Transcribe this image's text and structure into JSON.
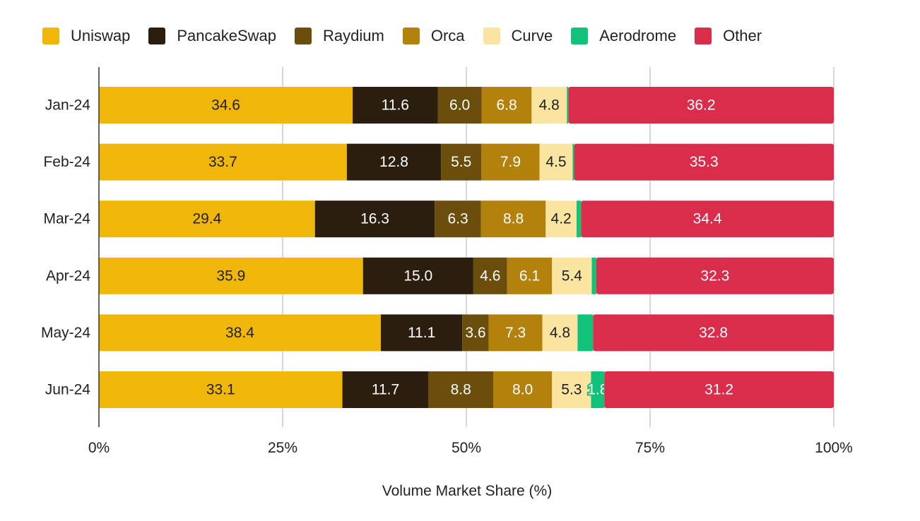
{
  "chart_data": {
    "type": "bar",
    "orientation": "horizontal",
    "stacked": true,
    "categories": [
      "Jan-24",
      "Feb-24",
      "Mar-24",
      "Apr-24",
      "May-24",
      "Jun-24"
    ],
    "series": [
      {
        "name": "Uniswap",
        "color": "#F0B70A",
        "values": [
          34.6,
          33.7,
          29.4,
          35.9,
          38.4,
          33.1
        ]
      },
      {
        "name": "PancakeSwap",
        "color": "#2B1E0E",
        "values": [
          11.6,
          12.8,
          16.3,
          15.0,
          11.1,
          11.7
        ]
      },
      {
        "name": "Raydium",
        "color": "#6B4E0B",
        "values": [
          6.0,
          5.5,
          6.3,
          4.6,
          3.6,
          8.8
        ]
      },
      {
        "name": "Orca",
        "color": "#B4820C",
        "values": [
          6.8,
          7.9,
          8.8,
          6.1,
          7.3,
          8.0
        ]
      },
      {
        "name": "Curve",
        "color": "#FAE5A0",
        "values": [
          4.8,
          4.5,
          4.2,
          5.4,
          4.8,
          5.3
        ]
      },
      {
        "name": "Aerodrome",
        "color": "#10C27A",
        "values": [
          0.2,
          0.2,
          0.6,
          0.6,
          2.1,
          1.8
        ]
      },
      {
        "name": "Other",
        "color": "#D92D4B",
        "values": [
          36.2,
          35.3,
          34.4,
          32.3,
          32.8,
          31.2
        ]
      }
    ],
    "value_labels": [
      [
        "34.6",
        "11.6",
        "6.0",
        "6.8",
        "4.8",
        "",
        "36.2"
      ],
      [
        "33.7",
        "12.8",
        "5.5",
        "7.9",
        "4.5",
        "",
        "35.3"
      ],
      [
        "29.4",
        "16.3",
        "6.3",
        "8.8",
        "4.2",
        "",
        "34.4"
      ],
      [
        "35.9",
        "15.0",
        "4.6",
        "6.1",
        "5.4",
        "",
        "32.3"
      ],
      [
        "38.4",
        "11.1",
        "3.6",
        "7.3",
        "4.8",
        "",
        "32.8"
      ],
      [
        "33.1",
        "11.7",
        "8.8",
        "8.0",
        "5.3",
        "1.8",
        "31.2"
      ]
    ],
    "label_colors": {
      "Uniswap": "#202124",
      "PancakeSwap": "#ffffff",
      "Raydium": "#ffffff",
      "Orca": "#ffffff",
      "Curve": "#202124",
      "Aerodrome": "#ffffff",
      "Other": "#ffffff"
    },
    "xlim": [
      0,
      100
    ],
    "xticks": [
      "0%",
      "25%",
      "50%",
      "75%",
      "100%"
    ],
    "xtick_values": [
      0,
      25,
      50,
      75,
      100
    ],
    "xlabel": "Volume Market Share (%)",
    "ylabel": "",
    "legend_position": "top",
    "grid": true,
    "gridline_color": "#cccccc"
  }
}
